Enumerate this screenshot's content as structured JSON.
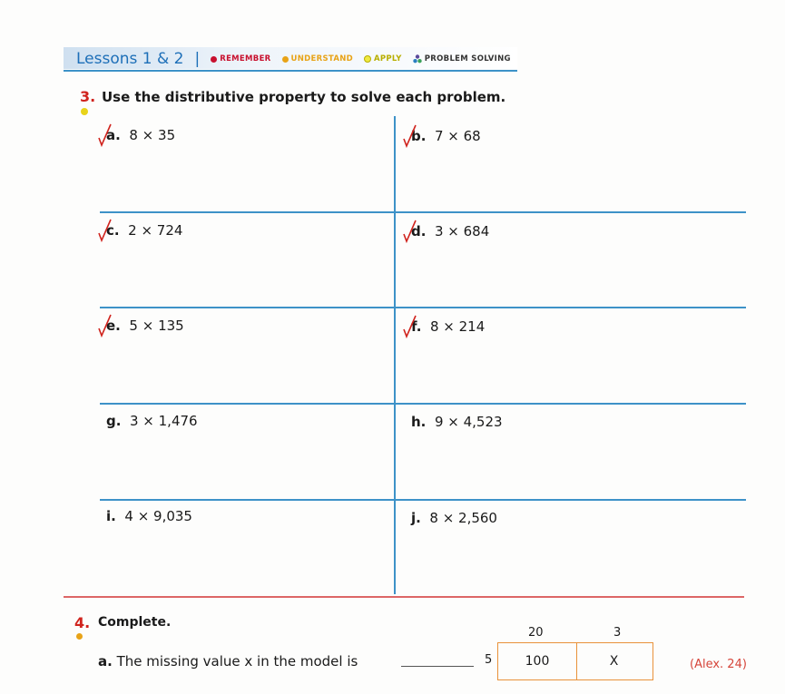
{
  "header": {
    "lessons": "Lessons 1 & 2",
    "separator": "|",
    "tags": [
      {
        "label": "REMEMBER",
        "color": "#c8102e"
      },
      {
        "label": "UNDERSTAND",
        "color": "#e8a317"
      },
      {
        "label": "APPLY",
        "color": "#d6cf16"
      },
      {
        "label": "PROBLEM SOLVING",
        "color": "#5b4a9b"
      }
    ]
  },
  "q3": {
    "number": "3.",
    "text": "Use the distributive property to solve each problem.",
    "items": [
      {
        "letter": "a.",
        "expr": "8 × 35",
        "checked": true
      },
      {
        "letter": "b.",
        "expr": "7 × 68",
        "checked": true
      },
      {
        "letter": "c.",
        "expr": "2 × 724",
        "checked": true
      },
      {
        "letter": "d.",
        "expr": "3 × 684",
        "checked": true
      },
      {
        "letter": "e.",
        "expr": "5 × 135",
        "checked": true
      },
      {
        "letter": "f.",
        "expr": "8 × 214",
        "checked": true
      },
      {
        "letter": "g.",
        "expr": "3 × 1,476",
        "checked": false
      },
      {
        "letter": "h.",
        "expr": "9 × 4,523",
        "checked": false
      },
      {
        "letter": "i.",
        "expr": "4 × 9,035",
        "checked": false
      },
      {
        "letter": "j.",
        "expr": "8 × 2,560",
        "checked": false
      }
    ]
  },
  "q4": {
    "number": "4.",
    "text": "Complete.",
    "a": {
      "letter": "a.",
      "text": "The missing value x in the model is",
      "model": {
        "col1": "20",
        "col2": "3",
        "row": "5",
        "cell1": "100",
        "cell2": "X"
      },
      "note": "(Alex. 24)"
    }
  }
}
